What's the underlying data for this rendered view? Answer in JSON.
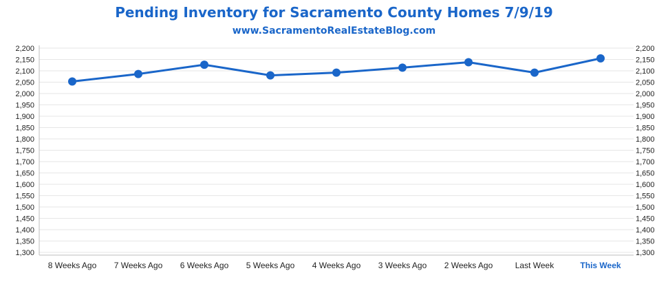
{
  "header": {
    "title": "Pending Inventory for Sacramento County Homes 7/9/19",
    "subtitle": "www.SacramentoRealEstateBlog.com"
  },
  "colors": {
    "title": "#1a66c9",
    "line": "#1a66c9",
    "grid": "#e6e6e6",
    "highlight_label": "#1a66c9"
  },
  "chart_data": {
    "type": "line",
    "title": "Pending Inventory for Sacramento County Homes 7/9/19",
    "subtitle": "www.SacramentoRealEstateBlog.com",
    "categories": [
      "8 Weeks Ago",
      "7 Weeks Ago",
      "6 Weeks Ago",
      "5 Weeks Ago",
      "4 Weeks Ago",
      "3 Weeks Ago",
      "2 Weeks Ago",
      "Last Week",
      "This Week"
    ],
    "highlight_category": "This Week",
    "series": [
      {
        "values": [
          2053,
          2086,
          2127,
          2080,
          2092,
          2114,
          2138,
          2092,
          2155
        ]
      }
    ],
    "ylim": [
      1300,
      2200
    ],
    "yticks": [
      1300,
      1350,
      1400,
      1450,
      1500,
      1550,
      1600,
      1650,
      1700,
      1750,
      1800,
      1850,
      1900,
      1950,
      2000,
      2050,
      2100,
      2150,
      2200
    ],
    "ytick_labels": [
      "1,300",
      "1,350",
      "1,400",
      "1,450",
      "1,500",
      "1,550",
      "1,600",
      "1,650",
      "1,700",
      "1,750",
      "1,800",
      "1,850",
      "1,900",
      "1,950",
      "2,000",
      "2,050",
      "2,100",
      "2,150",
      "2,200"
    ],
    "xlabel": "",
    "ylabel": "",
    "grid": true,
    "y_axis_sides": [
      "left",
      "right"
    ],
    "legend": "none"
  }
}
